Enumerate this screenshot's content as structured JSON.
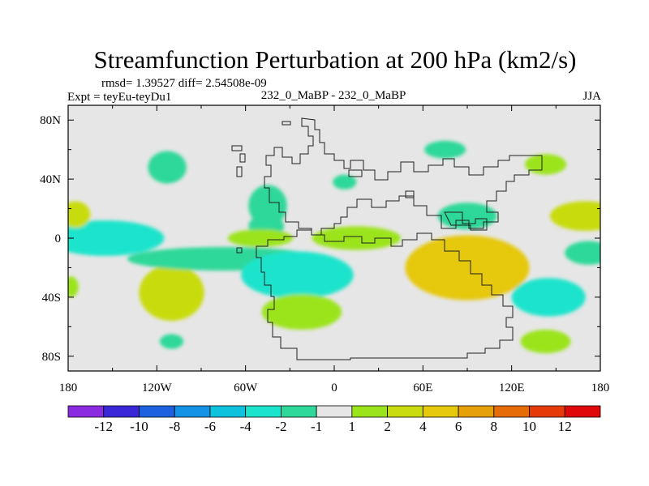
{
  "chart_data": {
    "type": "heatmap",
    "title": "Streamfunction Perturbation at 200 hPa (km2/s)",
    "stats_text": "rmsd= 1.39527  diff= 2.54508e-09",
    "left_label": "Expt = teyEu-teyDu1",
    "center_label": "232_0_MaBP - 232_0_MaBP",
    "right_label": "JJA",
    "x_ticks": [
      {
        "value": -180,
        "label": "180"
      },
      {
        "value": -120,
        "label": "120W"
      },
      {
        "value": -60,
        "label": "60W"
      },
      {
        "value": 0,
        "label": "0"
      },
      {
        "value": 60,
        "label": "60E"
      },
      {
        "value": 120,
        "label": "120E"
      },
      {
        "value": 180,
        "label": "180"
      }
    ],
    "y_ticks": [
      {
        "value": 80,
        "label": "80N"
      },
      {
        "value": 40,
        "label": "40N"
      },
      {
        "value": 0,
        "label": "0"
      },
      {
        "value": -40,
        "label": "40S"
      },
      {
        "value": -80,
        "label": "80S"
      }
    ],
    "xlim": [
      -180,
      180
    ],
    "ylim": [
      -90,
      90
    ],
    "colorbar": {
      "colors": [
        "#8a2be2",
        "#3a28d8",
        "#1c62e0",
        "#1493e6",
        "#0ec1dc",
        "#1ce4cc",
        "#2ed89a",
        "#e6e6e6",
        "#9be41c",
        "#c8dc10",
        "#e6c80c",
        "#e6a00a",
        "#e66c08",
        "#e63a08",
        "#e00808"
      ],
      "labels": [
        "-12",
        "-10",
        "-8",
        "-6",
        "-4",
        "-2",
        "-1",
        "1",
        "2",
        "4",
        "6",
        "8",
        "10",
        "12"
      ]
    },
    "anomalies": [
      {
        "lon": -113,
        "lat": 48,
        "lon_r": 13,
        "lat_r": 11,
        "value": -1.3
      },
      {
        "lon": -45,
        "lat": 22,
        "lon_r": 13,
        "lat_r": 14,
        "value": -1.6
      },
      {
        "lon": -46,
        "lat": 8,
        "lon_r": 12,
        "lat_r": 8,
        "value": -1.3
      },
      {
        "lon": 75,
        "lat": 60,
        "lon_r": 14,
        "lat_r": 6,
        "value": -1.3
      },
      {
        "lon": 7,
        "lat": 38,
        "lon_r": 8,
        "lat_r": 5,
        "value": -1.3
      },
      {
        "lon": 143,
        "lat": 50,
        "lon_r": 14,
        "lat_r": 7,
        "value": 1.5
      },
      {
        "lon": 90,
        "lat": 15,
        "lon_r": 20,
        "lat_r": 9,
        "value": -1.6
      },
      {
        "lon": -155,
        "lat": 0,
        "lon_r": 40,
        "lat_r": 12,
        "value": -3.0
      },
      {
        "lon": -175,
        "lat": 16,
        "lon_r": 10,
        "lat_r": 9,
        "value": 2.2
      },
      {
        "lon": -178,
        "lat": -33,
        "lon_r": 5,
        "lat_r": 7,
        "value": 1.6
      },
      {
        "lon": -110,
        "lat": -37,
        "lon_r": 22,
        "lat_r": 19,
        "value": 3.0
      },
      {
        "lon": -110,
        "lat": -70,
        "lon_r": 8,
        "lat_r": 5,
        "value": -1.3
      },
      {
        "lon": -75,
        "lat": -14,
        "lon_r": 65,
        "lat_r": 8,
        "value": -1.4
      },
      {
        "lon": -25,
        "lat": -25,
        "lon_r": 38,
        "lat_r": 16,
        "value": -4.0
      },
      {
        "lon": -22,
        "lat": -50,
        "lon_r": 27,
        "lat_r": 12,
        "value": 1.5
      },
      {
        "lon": -50,
        "lat": 0,
        "lon_r": 22,
        "lat_r": 6,
        "value": 1.5
      },
      {
        "lon": 15,
        "lat": 0,
        "lon_r": 30,
        "lat_r": 8,
        "value": 1.5
      },
      {
        "lon": 90,
        "lat": -20,
        "lon_r": 42,
        "lat_r": 22,
        "value": 5.0
      },
      {
        "lon": 145,
        "lat": -40,
        "lon_r": 25,
        "lat_r": 13,
        "value": -4.0
      },
      {
        "lon": 143,
        "lat": -70,
        "lon_r": 17,
        "lat_r": 8,
        "value": 1.5
      },
      {
        "lon": 170,
        "lat": 15,
        "lon_r": 24,
        "lat_r": 10,
        "value": 3.5
      },
      {
        "lon": 172,
        "lat": -10,
        "lon_r": 16,
        "lat_r": 8,
        "value": -1.6
      }
    ]
  }
}
